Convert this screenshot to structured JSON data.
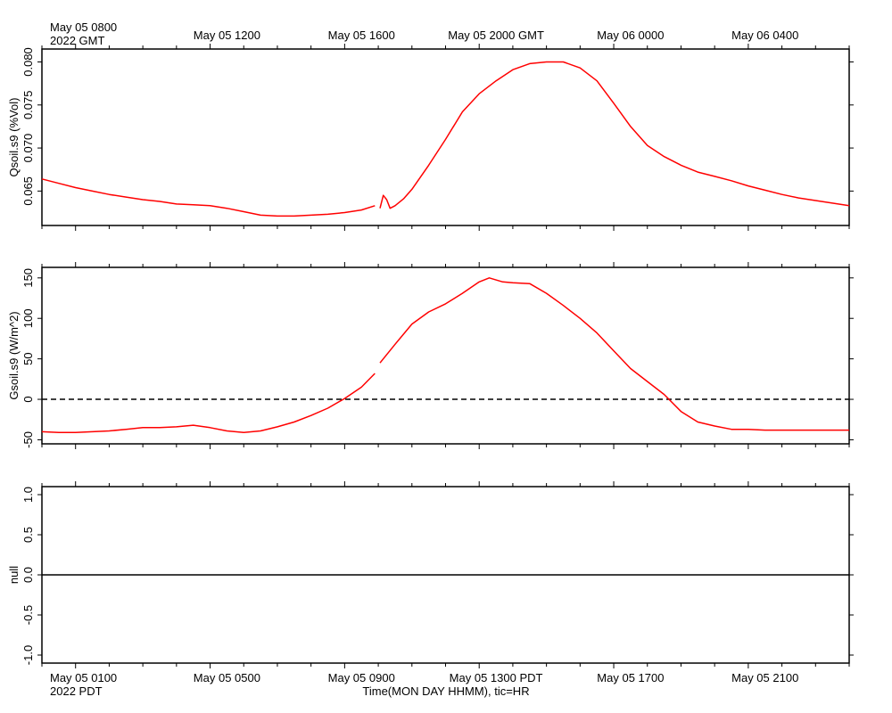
{
  "top_axis": {
    "first_label": "May 05 0800",
    "first_label_year": "2022 GMT",
    "labels": [
      "May 05 1200",
      "May 05 1600",
      "May 05 2000 GMT",
      "May 06 0000",
      "May 06 0400"
    ]
  },
  "bottom_axis": {
    "first_label": "May 05 0100",
    "first_label_year": "2022 PDT",
    "labels": [
      "May 05 0500",
      "May 05 0900",
      "May 05 1300 PDT",
      "May 05 1700",
      "May 05 2100"
    ],
    "title": "Time(MON DAY HHMM), tic=HR"
  },
  "chart_data": [
    {
      "type": "line",
      "x_unit": "hours since May 05 0000 PDT",
      "xlim": [
        0,
        24
      ],
      "ylabel": "Qsoil.s9 (%Vol)",
      "ylim": [
        0.061,
        0.0815
      ],
      "yticks": [
        0.065,
        0.07,
        0.075,
        0.08
      ],
      "ytick_labels": [
        "0.065",
        "0.070",
        "0.075",
        "0.080"
      ],
      "color": "#ff0000",
      "segments": [
        {
          "x": [
            0,
            0.5,
            1,
            1.5,
            2,
            2.5,
            3,
            3.5,
            4,
            4.5,
            5,
            5.5,
            6,
            6.5,
            7,
            7.5,
            8,
            8.5,
            9,
            9.5,
            9.9
          ],
          "y": [
            0.0664,
            0.0659,
            0.0654,
            0.065,
            0.0646,
            0.0643,
            0.064,
            0.0638,
            0.0635,
            0.0634,
            0.0633,
            0.063,
            0.0626,
            0.0622,
            0.0621,
            0.0621,
            0.0622,
            0.0623,
            0.0625,
            0.0628,
            0.0633
          ]
        },
        {
          "x": [
            10.05,
            10.15,
            10.25,
            10.35,
            10.5,
            10.75,
            11,
            11.5,
            12,
            12.5,
            13,
            13.5,
            14,
            14.5,
            15,
            15.5,
            16,
            16.5,
            17,
            17.5,
            18,
            18.5,
            19,
            19.5,
            20,
            20.5,
            21,
            21.5,
            22,
            22.5,
            23,
            23.5,
            24
          ],
          "y": [
            0.063,
            0.0645,
            0.064,
            0.063,
            0.0633,
            0.0641,
            0.0652,
            0.068,
            0.071,
            0.0742,
            0.0763,
            0.0778,
            0.0791,
            0.0798,
            0.08,
            0.08,
            0.0793,
            0.0778,
            0.0752,
            0.0725,
            0.0703,
            0.069,
            0.068,
            0.0672,
            0.0667,
            0.0662,
            0.0656,
            0.0651,
            0.0646,
            0.0642,
            0.0639,
            0.0636,
            0.0633
          ]
        }
      ]
    },
    {
      "type": "line",
      "x_unit": "hours since May 05 0000 PDT",
      "xlim": [
        0,
        24
      ],
      "ylabel": "Gsoil.s9 (W/m^2)",
      "ylim": [
        -55,
        163
      ],
      "yticks": [
        -50,
        0,
        50,
        100,
        150
      ],
      "ytick_labels": [
        "-50",
        "0",
        "50",
        "100",
        "150"
      ],
      "reference_line": {
        "y": 0,
        "style": "dashed"
      },
      "color": "#ff0000",
      "segments": [
        {
          "x": [
            0,
            0.5,
            1,
            1.5,
            2,
            2.5,
            3,
            3.5,
            4,
            4.5,
            5,
            5.5,
            6,
            6.5,
            7,
            7.5,
            8,
            8.5,
            9,
            9.5,
            9.9
          ],
          "y": [
            -40,
            -41,
            -41,
            -40,
            -39,
            -37,
            -35,
            -35,
            -34,
            -32,
            -35,
            -39,
            -41,
            -39,
            -34,
            -28,
            -20,
            -11,
            1,
            15,
            32
          ]
        },
        {
          "x": [
            10.05,
            10.5,
            11,
            11.5,
            12,
            12.5,
            13,
            13.3,
            13.7,
            14,
            14.5,
            15,
            15.5,
            16,
            16.5,
            17,
            17.5,
            18,
            18.5,
            19,
            19.5,
            20,
            20.5,
            21,
            21.5,
            22,
            22.5,
            23,
            23.5,
            24
          ],
          "y": [
            45,
            68,
            93,
            108,
            118,
            131,
            145,
            150,
            145,
            144,
            143,
            131,
            116,
            100,
            82,
            60,
            38,
            22,
            6,
            -15,
            -28,
            -33,
            -37,
            -37,
            -38,
            -38,
            -38,
            -38,
            -38,
            -38
          ]
        }
      ]
    },
    {
      "type": "line",
      "x_unit": "hours since May 05 0000 PDT",
      "xlim": [
        0,
        24
      ],
      "ylabel": "null",
      "ylim": [
        -1.1,
        1.1
      ],
      "yticks": [
        -1.0,
        -0.5,
        0.0,
        0.5,
        1.0
      ],
      "ytick_labels": [
        "-1.0",
        "-0.5",
        "0.0",
        "0.5",
        "1.0"
      ],
      "color": "#000000",
      "segments": [
        {
          "x": [
            0,
            24
          ],
          "y": [
            0,
            0
          ]
        }
      ]
    }
  ]
}
